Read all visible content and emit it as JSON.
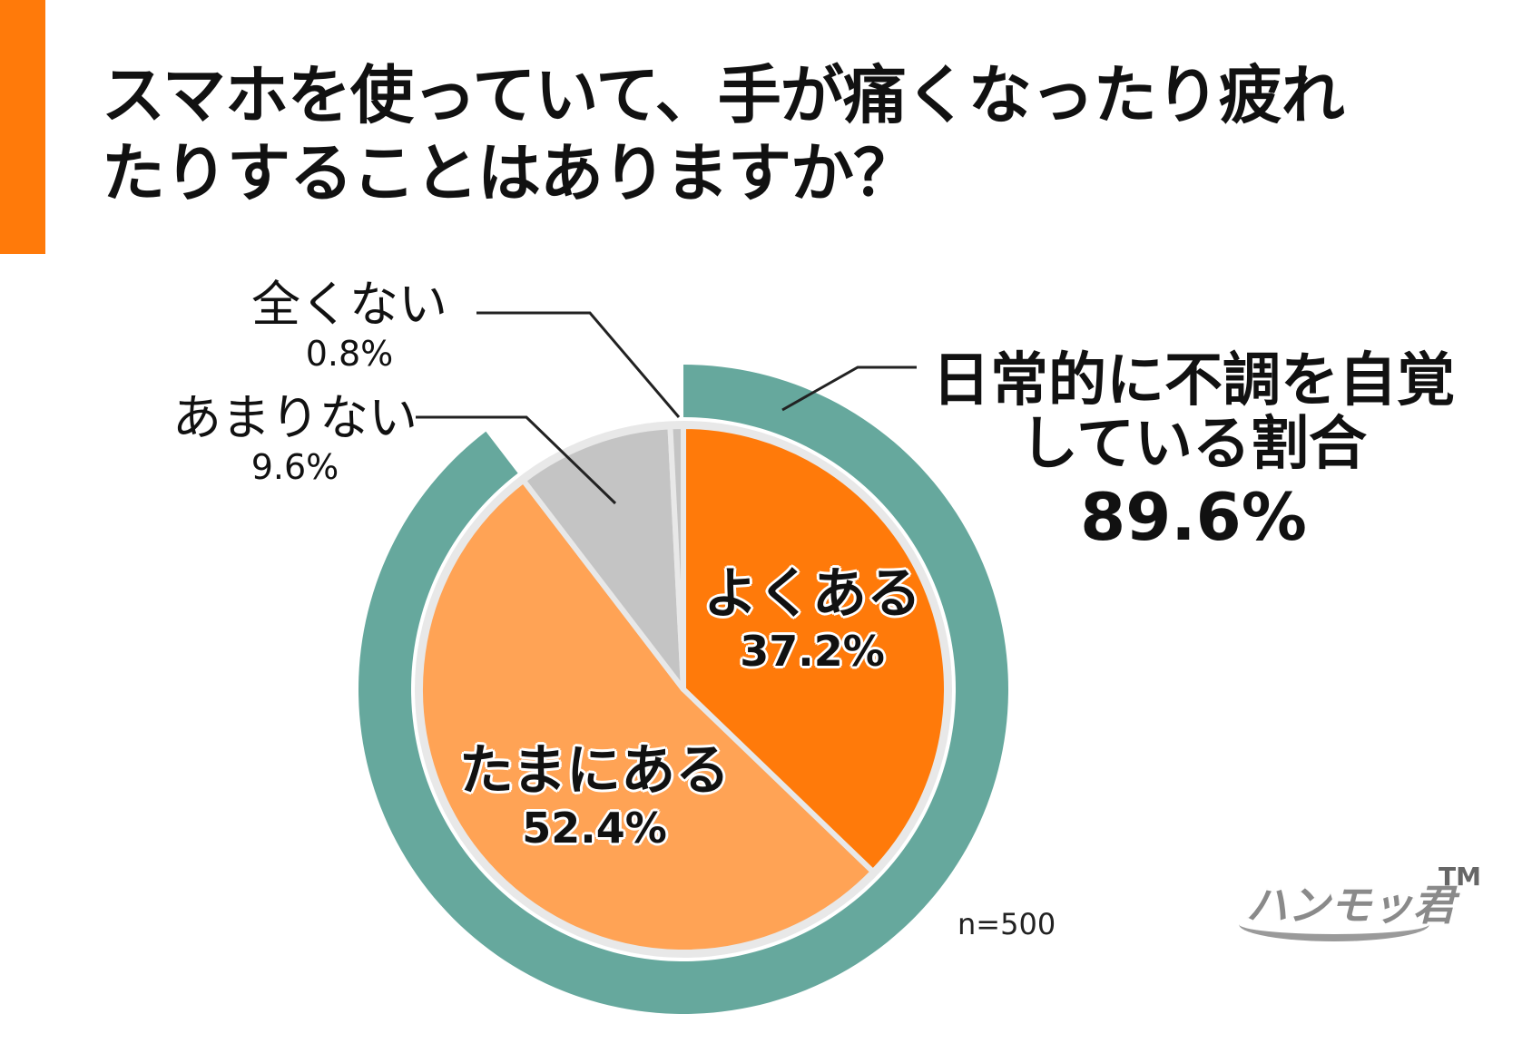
{
  "title_lines": [
    "スマホを使っていて、手が痛くなったり疲れ",
    "たりすることはありますか？"
  ],
  "chart_data": {
    "type": "pie",
    "title": "スマホを使っていて、手が痛くなったり疲れたりすることはありますか？",
    "slices": [
      {
        "label": "よくある",
        "value": 37.2,
        "display": "37.2%",
        "color": "#ff7a0a"
      },
      {
        "label": "たまにある",
        "value": 52.4,
        "display": "52.4%",
        "color": "#ffa355"
      },
      {
        "label": "あまりない",
        "value": 9.6,
        "display": "9.6%",
        "color": "#c4c4c4"
      },
      {
        "label": "全くない",
        "value": 0.8,
        "display": "0.8%",
        "color": "#c4c4c4"
      }
    ],
    "outer_ring": {
      "covers": [
        "よくある",
        "たまにある"
      ],
      "value": 89.6,
      "color": "#66a89d"
    },
    "callout_lines": [
      "日常的に不調を自覚",
      "している割合",
      "89.6%"
    ],
    "sample_size": "n=500"
  },
  "logo": {
    "text": "ハンモッ君",
    "tm": "TM"
  },
  "colors": {
    "accent": "#ff7a0a",
    "ring": "#66a89d",
    "separator": "#e8e8e8"
  }
}
